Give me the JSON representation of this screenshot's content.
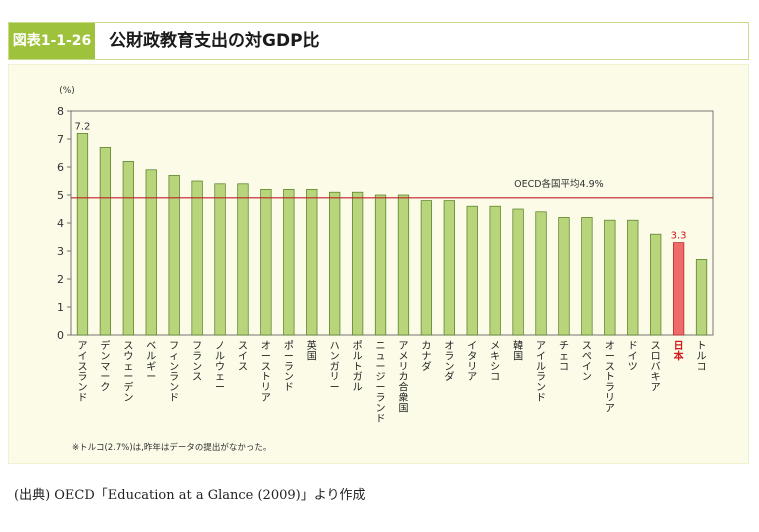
{
  "header": {
    "figure_label": "図表1-1-26",
    "title": "公財政教育支出の対GDP比"
  },
  "colors": {
    "header_green": "#9fc23d",
    "bar_fill": "#b9d57c",
    "bar_stroke": "#4f7a1e",
    "highlight_fill": "#ef6b6b",
    "highlight_stroke": "#b41e1e",
    "average_line": "#c0212b",
    "panel_bg": "#fbfbe8"
  },
  "chart_data": {
    "type": "bar",
    "title": "公財政教育支出の対GDP比",
    "ylabel": "(%)",
    "xlabel": "",
    "ylim": [
      0,
      8
    ],
    "yticks": [
      0,
      1,
      2,
      3,
      4,
      5,
      6,
      7,
      8
    ],
    "grid": false,
    "categories": [
      "アイスランド",
      "デンマーク",
      "スウェーデン",
      "ベルギー",
      "フィンランド",
      "フランス",
      "ノルウェー",
      "スイス",
      "オーストリア",
      "ポーランド",
      "英国",
      "ハンガリー",
      "ポルトガル",
      "ニュージーランド",
      "アメリカ合衆国",
      "カナダ",
      "オランダ",
      "イタリア",
      "メキシコ",
      "韓国",
      "アイルランド",
      "チェコ",
      "スペイン",
      "オーストラリア",
      "ドイツ",
      "スロバキア",
      "日本",
      "トルコ"
    ],
    "values": [
      7.2,
      6.7,
      6.2,
      5.9,
      5.7,
      5.5,
      5.4,
      5.4,
      5.2,
      5.2,
      5.2,
      5.1,
      5.1,
      5.0,
      5.0,
      4.8,
      4.8,
      4.6,
      4.6,
      4.5,
      4.4,
      4.2,
      4.2,
      4.1,
      4.1,
      3.6,
      3.3,
      2.7
    ],
    "highlight_category": "日本",
    "data_labels": [
      {
        "category": "アイスランド",
        "text": "7.2"
      },
      {
        "category": "日本",
        "text": "3.3"
      }
    ],
    "reference_line": {
      "value": 4.9,
      "label": "OECD各国平均4.9%"
    }
  },
  "footnote": "※トルコ(2.7%)は,昨年はデータの提出がなかった。",
  "source": "(出典) OECD「Education at a Glance (2009)」より作成"
}
